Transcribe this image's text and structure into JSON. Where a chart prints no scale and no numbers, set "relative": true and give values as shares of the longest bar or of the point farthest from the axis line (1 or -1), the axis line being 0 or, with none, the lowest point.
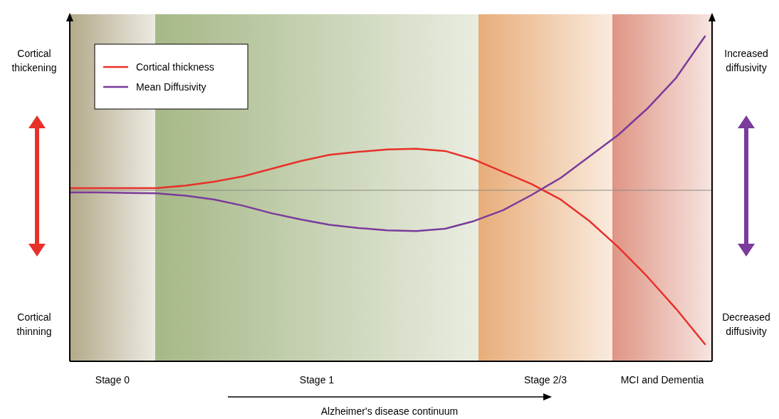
{
  "chart_data": {
    "type": "line",
    "relative": true,
    "legend": "top left",
    "line_style": "solid",
    "categories": [
      null,
      null,
      null,
      null,
      null,
      null,
      null,
      null,
      null,
      null,
      null,
      null,
      null,
      null,
      null,
      null,
      null,
      null,
      null,
      null,
      null,
      null,
      null
    ],
    "series": [
      {
        "name": "Cortical thickness",
        "color": "#e8302a",
        "values": [
          0.014,
          0.014,
          0.014,
          0.014,
          0.03,
          0.056,
          0.09,
          0.14,
          0.19,
          0.23,
          0.25,
          0.265,
          0.27,
          0.255,
          0.2,
          0.12,
          0.04,
          -0.06,
          -0.2,
          -0.37,
          -0.56,
          -0.77,
          -1
        ]
      },
      {
        "name": "Mean Diffusivity",
        "color": "#7a3b9a",
        "values": [
          -0.014,
          -0.014,
          -0.017,
          -0.02,
          -0.035,
          -0.06,
          -0.1,
          -0.15,
          -0.19,
          -0.225,
          -0.245,
          -0.26,
          -0.265,
          -0.25,
          -0.2,
          -0.13,
          -0.03,
          0.08,
          0.22,
          0.36,
          0.53,
          0.73,
          1
        ]
      }
    ],
    "annotations": [
      "Cortical thickening",
      "Cortical thinning",
      "Increased diffusivity",
      "Decreased diffusivity",
      "Stage 0",
      "Stage 1",
      "Stage 2/3",
      "MCI and Dementia",
      "Alzheimer's disease continuum"
    ]
  }
}
